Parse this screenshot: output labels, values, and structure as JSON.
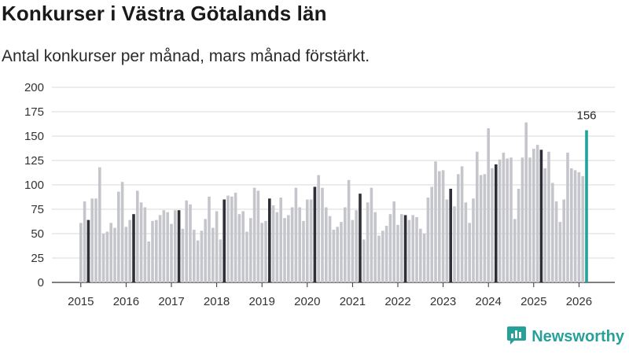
{
  "title": "Konkurser i Västra Götalands län",
  "subtitle": "Antal konkurser per månad, mars månad förstärkt.",
  "brand": {
    "name": "Newsworthy",
    "icon": "newsworthy-logo-icon"
  },
  "colors": {
    "bar": "#c5c5cc",
    "march": "#2f2f3a",
    "latest": "#1fa39a",
    "grid": "#d9d9d9",
    "brand": "#27a09a"
  },
  "chart_data": {
    "type": "bar",
    "title": "Konkurser i Västra Götalands län",
    "xlabel": "",
    "ylabel": "",
    "ylim": [
      0,
      200
    ],
    "yticks": [
      0,
      25,
      50,
      75,
      100,
      125,
      150,
      175,
      200
    ],
    "xticks": [
      "2015",
      "2016",
      "2017",
      "2018",
      "2019",
      "2020",
      "2021",
      "2022",
      "2023",
      "2024",
      "2025",
      "2026"
    ],
    "start_year": 2015,
    "start_month": 1,
    "highlight_month": 3,
    "annotation": {
      "label": "156",
      "target": "last"
    },
    "values": [
      61,
      83,
      64,
      86,
      86,
      118,
      50,
      52,
      61,
      56,
      93,
      103,
      57,
      64,
      70,
      94,
      82,
      77,
      42,
      63,
      64,
      69,
      74,
      72,
      60,
      74,
      74,
      55,
      84,
      80,
      54,
      43,
      53,
      65,
      88,
      56,
      73,
      44,
      85,
      89,
      88,
      92,
      70,
      73,
      52,
      66,
      97,
      94,
      61,
      63,
      86,
      79,
      72,
      87,
      66,
      69,
      77,
      97,
      77,
      63,
      85,
      85,
      98,
      110,
      97,
      77,
      68,
      54,
      57,
      62,
      77,
      105,
      64,
      74,
      91,
      44,
      82,
      97,
      72,
      48,
      53,
      58,
      70,
      83,
      59,
      70,
      69,
      64,
      69,
      67,
      55,
      50,
      87,
      98,
      124,
      114,
      115,
      85,
      96,
      78,
      111,
      119,
      82,
      61,
      86,
      134,
      110,
      111,
      158,
      117,
      121,
      126,
      133,
      127,
      128,
      65,
      96,
      128,
      164,
      128,
      137,
      141,
      136,
      117,
      134,
      102,
      83,
      62,
      85,
      133,
      117,
      115,
      113,
      109,
      156
    ]
  }
}
